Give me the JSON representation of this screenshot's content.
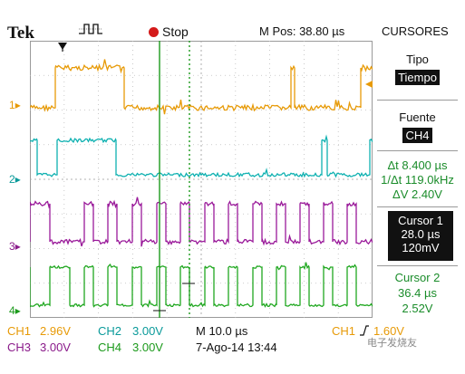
{
  "header": {
    "brand": "Tek",
    "run_state": "Stop",
    "m_pos": "M Pos: 38.80 µs",
    "menu_title": "CURSORES"
  },
  "right_menu": {
    "tipo_label": "Tipo",
    "tipo_value": "Tiempo",
    "fuente_label": "Fuente",
    "fuente_value": "CH4",
    "delta_t": "Δt 8.400 µs",
    "inv_delta_t": "1/Δt 119.0kHz",
    "delta_v": "ΔV 2.40V",
    "cursor1_label": "Cursor 1",
    "cursor1_time": "28.0 µs",
    "cursor1_volt": "120mV",
    "cursor2_label": "Cursor 2",
    "cursor2_time": "36.4 µs",
    "cursor2_volt": "2.52V"
  },
  "bottom": {
    "ch1": "CH1",
    "ch1_scale": "2.96V",
    "ch2": "CH2",
    "ch2_scale": "3.00V",
    "ch3": "CH3",
    "ch3_scale": "3.00V",
    "ch4": "CH4",
    "ch4_scale": "3.00V",
    "time_scale": "M 10.0 µs",
    "date": "7-Ago-14 13:44",
    "trig_ch": "CH1",
    "trig_level": "1.60V"
  },
  "channel_markers": [
    "1",
    "2",
    "3",
    "4"
  ],
  "watermark": "电子发烧友",
  "colors": {
    "ch1": "#e79a07",
    "ch2": "#0fb1b1",
    "ch3": "#9a1a9a",
    "ch4": "#21a821",
    "cursor": "#1c9a1c"
  }
}
